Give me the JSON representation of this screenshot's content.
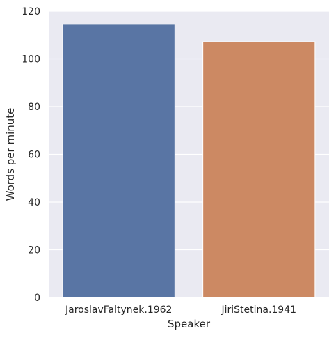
{
  "chart_data": {
    "type": "bar",
    "categories": [
      "JaroslavFaltynek.1962",
      "JiriStetina.1941"
    ],
    "values": [
      114.5,
      107.1
    ],
    "colors": [
      "#5975a4",
      "#cc8963"
    ],
    "xlabel": "Speaker",
    "ylabel": "Words per minute",
    "ylim": [
      0,
      120
    ],
    "yticks": [
      0,
      20,
      40,
      60,
      80,
      100,
      120
    ],
    "grid": true,
    "background": "#eaeaf2",
    "gridColor": "#ffffff"
  }
}
